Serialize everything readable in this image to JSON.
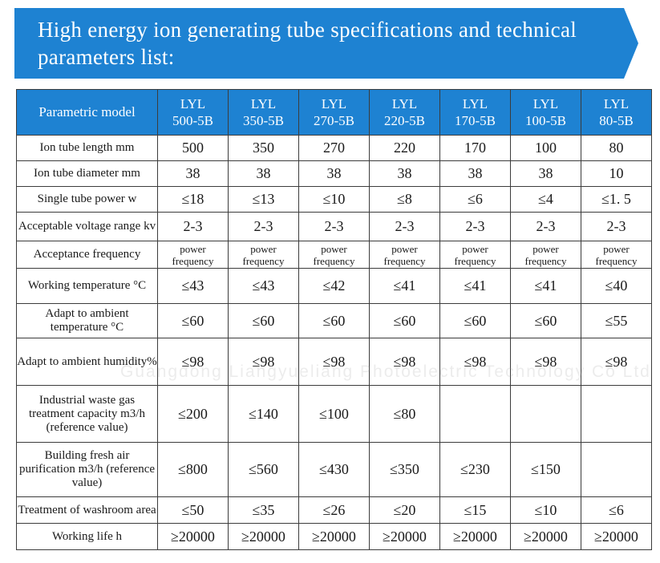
{
  "banner": {
    "title": "High energy ion generating tube specifications and technical parameters list:",
    "color": "#1e82d2"
  },
  "table": {
    "corner_label": "Parametric model",
    "models": [
      {
        "line1": "LYL",
        "line2": "500-5B"
      },
      {
        "line1": "LYL",
        "line2": "350-5B"
      },
      {
        "line1": "LYL",
        "line2": "270-5B"
      },
      {
        "line1": "LYL",
        "line2": "220-5B"
      },
      {
        "line1": "LYL",
        "line2": "170-5B"
      },
      {
        "line1": "LYL",
        "line2": "100-5B"
      },
      {
        "line1": "LYL",
        "line2": "80-5B"
      }
    ],
    "rows": [
      {
        "label": "Ion tube length mm",
        "values": [
          "500",
          "350",
          "270",
          "220",
          "170",
          "100",
          "80"
        ]
      },
      {
        "label": "Ion tube diameter mm",
        "values": [
          "38",
          "38",
          "38",
          "38",
          "38",
          "38",
          "10"
        ]
      },
      {
        "label": "Single tube power w",
        "values": [
          "≤18",
          "≤13",
          "≤10",
          "≤8",
          "≤6",
          "≤4",
          "≤1. 5"
        ]
      },
      {
        "label": "Acceptable voltage range kv",
        "values": [
          "2-3",
          "2-3",
          "2-3",
          "2-3",
          "2-3",
          "2-3",
          "2-3"
        ]
      },
      {
        "label": "Acceptance frequency",
        "values": [
          "power frequency",
          "power frequency",
          "power frequency",
          "power frequency",
          "power frequency",
          "power frequency",
          "power frequency"
        ]
      },
      {
        "label": "Working temperature °C",
        "values": [
          "≤43",
          "≤43",
          "≤42",
          "≤41",
          "≤41",
          "≤41",
          "≤40"
        ]
      },
      {
        "label": "Adapt to ambient temperature °C",
        "values": [
          "≤60",
          "≤60",
          "≤60",
          "≤60",
          "≤60",
          "≤60",
          "≤55"
        ]
      },
      {
        "label": "Adapt to ambient humidity%",
        "values": [
          "≤98",
          "≤98",
          "≤98",
          "≤98",
          "≤98",
          "≤98",
          "≤98"
        ]
      },
      {
        "label": "Industrial waste gas treatment capacity m3/h (reference value)",
        "values": [
          "≤200",
          "≤140",
          "≤100",
          "≤80",
          "",
          "",
          ""
        ]
      },
      {
        "label": "Building fresh air purification m3/h (reference value)",
        "values": [
          "≤800",
          "≤560",
          "≤430",
          "≤350",
          "≤230",
          "≤150",
          ""
        ]
      },
      {
        "label": "Treatment of washroom area",
        "values": [
          "≤50",
          "≤35",
          "≤26",
          "≤20",
          "≤15",
          "≤10",
          "≤6"
        ]
      },
      {
        "label": "Working life h",
        "values": [
          "≥20000",
          "≥20000",
          "≥20000",
          "≥20000",
          "≥20000",
          "≥20000",
          "≥20000"
        ]
      }
    ]
  },
  "watermark": "Guangdong Liangyueliang Photoelectric Technology Co Ltd"
}
